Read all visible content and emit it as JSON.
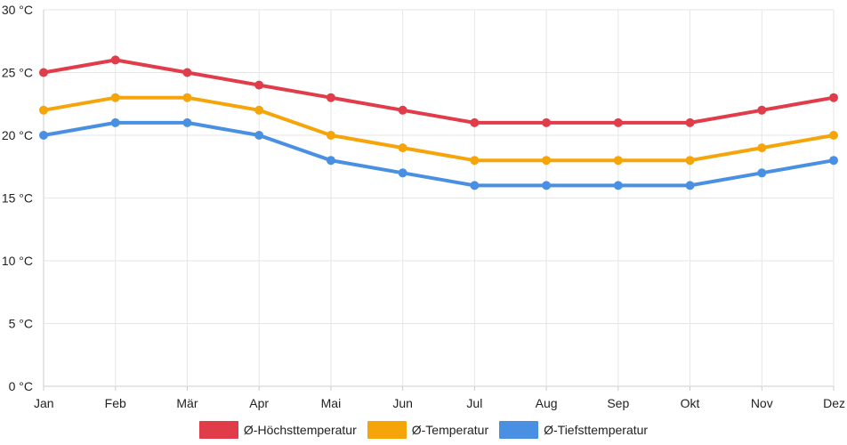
{
  "chart_data": {
    "type": "line",
    "title": "",
    "xlabel": "",
    "ylabel": "",
    "categories": [
      "Jan",
      "Feb",
      "Mär",
      "Apr",
      "Mai",
      "Jun",
      "Jul",
      "Aug",
      "Sep",
      "Okt",
      "Nov",
      "Dez"
    ],
    "ylim": [
      0,
      30
    ],
    "y_ticks": [
      0,
      5,
      10,
      15,
      20,
      25,
      30
    ],
    "y_unit": "°C",
    "grid": true,
    "legend_position": "bottom-center",
    "series": [
      {
        "name": "Ø-Höchsttemperatur",
        "color": "#e03c49",
        "values": [
          25,
          26,
          25,
          24,
          23,
          22,
          21,
          21,
          21,
          21,
          22,
          23
        ]
      },
      {
        "name": "Ø-Temperatur",
        "color": "#f5a50a",
        "values": [
          22,
          23,
          23,
          22,
          20,
          19,
          18,
          18,
          18,
          18,
          19,
          20
        ]
      },
      {
        "name": "Ø-Tiefsttemperatur",
        "color": "#4a90e2",
        "values": [
          20,
          21,
          21,
          20,
          18,
          17,
          16,
          16,
          16,
          16,
          17,
          18
        ]
      }
    ]
  }
}
